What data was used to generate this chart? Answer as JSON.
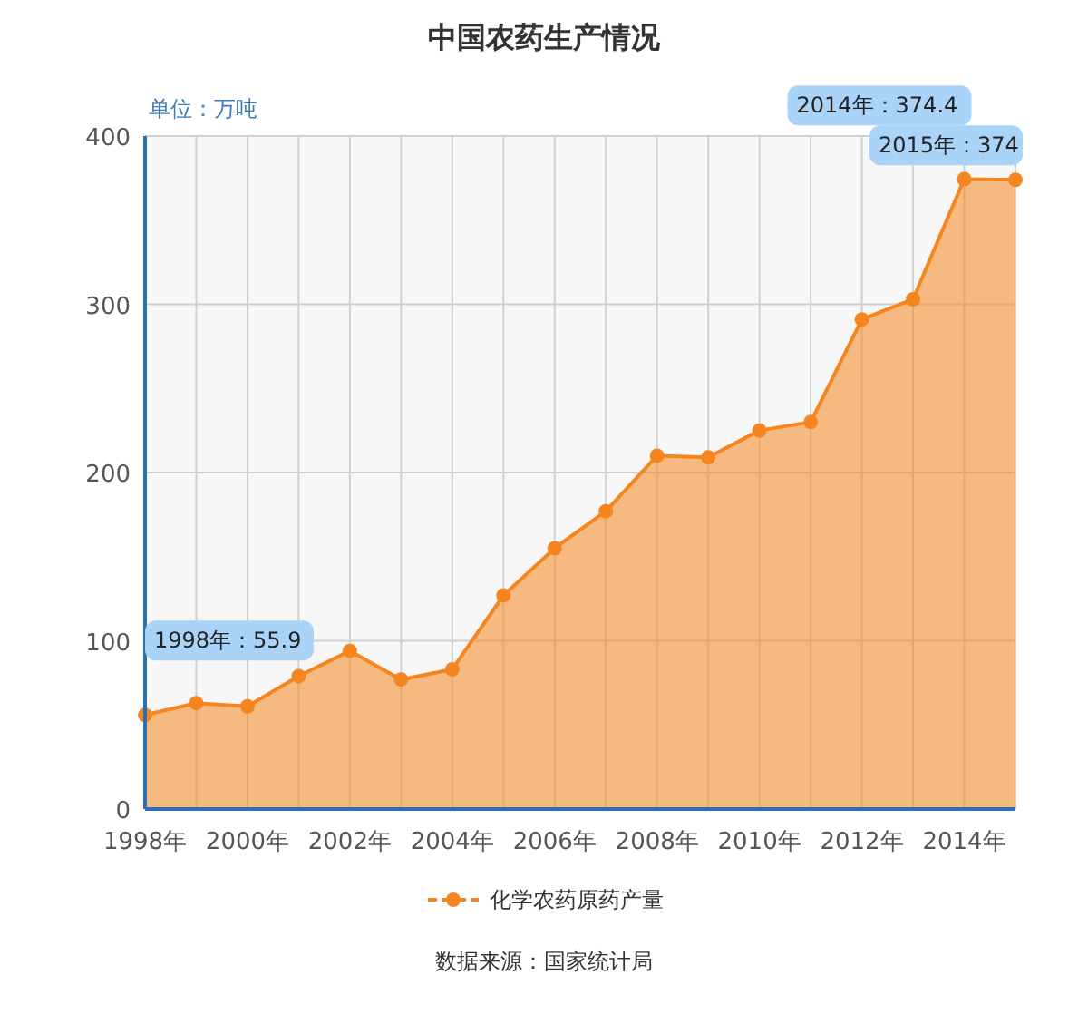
{
  "chart_data": {
    "type": "area",
    "title": "中国农药生产情况",
    "ylabel": "单位：万吨",
    "x": [
      1998,
      1999,
      2000,
      2001,
      2002,
      2003,
      2004,
      2005,
      2006,
      2007,
      2008,
      2009,
      2010,
      2011,
      2012,
      2013,
      2014,
      2015
    ],
    "series": [
      {
        "name": "化学农药原药产量",
        "color": "#f5861f",
        "values": [
          55.9,
          63,
          61,
          79,
          94,
          77,
          83,
          127,
          155,
          177,
          210,
          209,
          225,
          230,
          291,
          303,
          374.4,
          374
        ]
      }
    ],
    "xlim": [
      1998,
      2015
    ],
    "xticks": [
      {
        "value": 1998,
        "label": "1998年"
      },
      {
        "value": 2000,
        "label": "2000年"
      },
      {
        "value": 2002,
        "label": "2002年"
      },
      {
        "value": 2004,
        "label": "2004年"
      },
      {
        "value": 2006,
        "label": "2006年"
      },
      {
        "value": 2008,
        "label": "2008年"
      },
      {
        "value": 2010,
        "label": "2010年"
      },
      {
        "value": 2012,
        "label": "2012年"
      },
      {
        "value": 2014,
        "label": "2014年"
      }
    ],
    "ylim": [
      0,
      400
    ],
    "yticks": [
      0,
      100,
      200,
      300,
      400
    ],
    "grid": true,
    "marker": "circle",
    "legend": "bottom",
    "annotations": [
      {
        "text": "1998年：55.9",
        "x": 1998,
        "y": 55.9
      },
      {
        "text": "2014年：374.4",
        "x": 2014,
        "y": 374.4
      },
      {
        "text": "2015年：374",
        "x": 2015,
        "y": 374
      },
      "数据来源：国家统计局"
    ]
  }
}
